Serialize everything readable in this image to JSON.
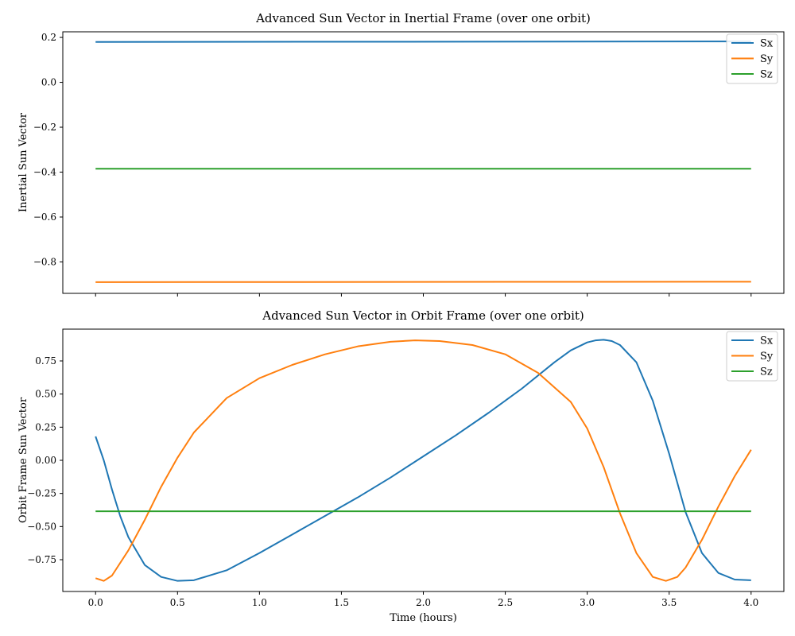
{
  "colors": {
    "Sx": "#1f77b4",
    "Sy": "#ff7f0e",
    "Sz": "#2ca02c"
  },
  "chart_data": [
    {
      "type": "line",
      "title": "Advanced Sun Vector in Inertial Frame (over one orbit)",
      "xlabel": "",
      "ylabel": "Inertial Sun Vector",
      "xlim": [
        -0.2,
        4.2
      ],
      "ylim": [
        -0.94,
        0.225
      ],
      "xticks": [
        0.0,
        0.5,
        1.0,
        1.5,
        2.0,
        2.5,
        3.0,
        3.5,
        4.0
      ],
      "xtick_labels_shown": false,
      "yticks": [
        -0.8,
        -0.6,
        -0.4,
        -0.2,
        0.0,
        0.2
      ],
      "ytick_labels": [
        "−0.8",
        "−0.6",
        "−0.4",
        "−0.2",
        "0.0",
        "0.2"
      ],
      "grid": false,
      "legend": "top-right",
      "series": [
        {
          "name": "Sx",
          "color_key": "Sx",
          "x": [
            0.0,
            4.0
          ],
          "y": [
            0.18,
            0.182
          ]
        },
        {
          "name": "Sy",
          "color_key": "Sy",
          "x": [
            0.0,
            4.0
          ],
          "y": [
            -0.89,
            -0.888
          ]
        },
        {
          "name": "Sz",
          "color_key": "Sz",
          "x": [
            0.0,
            4.0
          ],
          "y": [
            -0.385,
            -0.385
          ]
        }
      ]
    },
    {
      "type": "line",
      "title": "Advanced Sun Vector in Orbit Frame (over one orbit)",
      "xlabel": "Time (hours)",
      "ylabel": "Orbit Frame Sun Vector",
      "xlim": [
        -0.2,
        4.2
      ],
      "ylim": [
        -0.99,
        0.99
      ],
      "xticks": [
        0.0,
        0.5,
        1.0,
        1.5,
        2.0,
        2.5,
        3.0,
        3.5,
        4.0
      ],
      "xtick_labels": [
        "0.0",
        "0.5",
        "1.0",
        "1.5",
        "2.0",
        "2.5",
        "3.0",
        "3.5",
        "4.0"
      ],
      "xtick_labels_shown": true,
      "yticks": [
        -0.75,
        -0.5,
        -0.25,
        0.0,
        0.25,
        0.5,
        0.75
      ],
      "ytick_labels": [
        "−0.75",
        "−0.50",
        "−0.25",
        "0.00",
        "0.25",
        "0.50",
        "0.75"
      ],
      "grid": false,
      "legend": "top-right",
      "series": [
        {
          "name": "Sx",
          "color_key": "Sx",
          "x": [
            0.0,
            0.05,
            0.1,
            0.15,
            0.2,
            0.3,
            0.4,
            0.5,
            0.6,
            0.8,
            1.0,
            1.2,
            1.4,
            1.6,
            1.8,
            2.0,
            2.2,
            2.4,
            2.6,
            2.8,
            2.9,
            3.0,
            3.05,
            3.1,
            3.15,
            3.2,
            3.3,
            3.4,
            3.5,
            3.6,
            3.7,
            3.8,
            3.9,
            4.0
          ],
          "y": [
            0.18,
            0.0,
            -0.22,
            -0.42,
            -0.58,
            -0.79,
            -0.88,
            -0.91,
            -0.905,
            -0.83,
            -0.7,
            -0.56,
            -0.42,
            -0.28,
            -0.13,
            0.03,
            0.19,
            0.36,
            0.54,
            0.74,
            0.83,
            0.89,
            0.905,
            0.91,
            0.9,
            0.87,
            0.74,
            0.45,
            0.05,
            -0.39,
            -0.7,
            -0.85,
            -0.9,
            -0.905
          ]
        },
        {
          "name": "Sy",
          "color_key": "Sy",
          "x": [
            0.0,
            0.05,
            0.1,
            0.2,
            0.3,
            0.4,
            0.5,
            0.6,
            0.8,
            1.0,
            1.2,
            1.4,
            1.6,
            1.8,
            1.95,
            2.1,
            2.3,
            2.5,
            2.7,
            2.9,
            3.0,
            3.1,
            3.2,
            3.3,
            3.4,
            3.48,
            3.55,
            3.6,
            3.7,
            3.8,
            3.9,
            4.0
          ],
          "y": [
            -0.89,
            -0.91,
            -0.87,
            -0.68,
            -0.45,
            -0.2,
            0.02,
            0.21,
            0.47,
            0.62,
            0.72,
            0.8,
            0.86,
            0.895,
            0.905,
            0.9,
            0.87,
            0.8,
            0.66,
            0.44,
            0.24,
            -0.05,
            -0.4,
            -0.7,
            -0.88,
            -0.91,
            -0.88,
            -0.81,
            -0.6,
            -0.35,
            -0.12,
            0.08
          ]
        },
        {
          "name": "Sz",
          "color_key": "Sz",
          "x": [
            0.0,
            4.0
          ],
          "y": [
            -0.385,
            -0.385
          ]
        }
      ]
    }
  ]
}
